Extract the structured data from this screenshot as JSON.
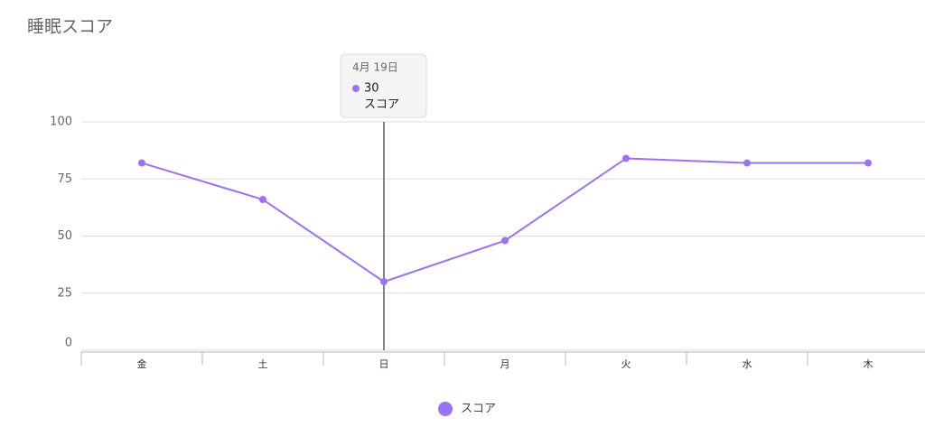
{
  "chart_data": {
    "type": "line",
    "title": "睡眠スコア",
    "categories": [
      "金",
      "土",
      "日",
      "月",
      "火",
      "水",
      "木"
    ],
    "series": [
      {
        "name": "スコア",
        "color": "#9b72f2",
        "values": [
          82,
          66,
          30,
          48,
          84,
          82,
          82
        ]
      }
    ],
    "ylim": [
      0,
      100
    ],
    "yticks": [
      0,
      25,
      50,
      75,
      100
    ],
    "grid": true,
    "legend": "bottom",
    "tooltip": {
      "title": "4月 19日"
    }
  }
}
